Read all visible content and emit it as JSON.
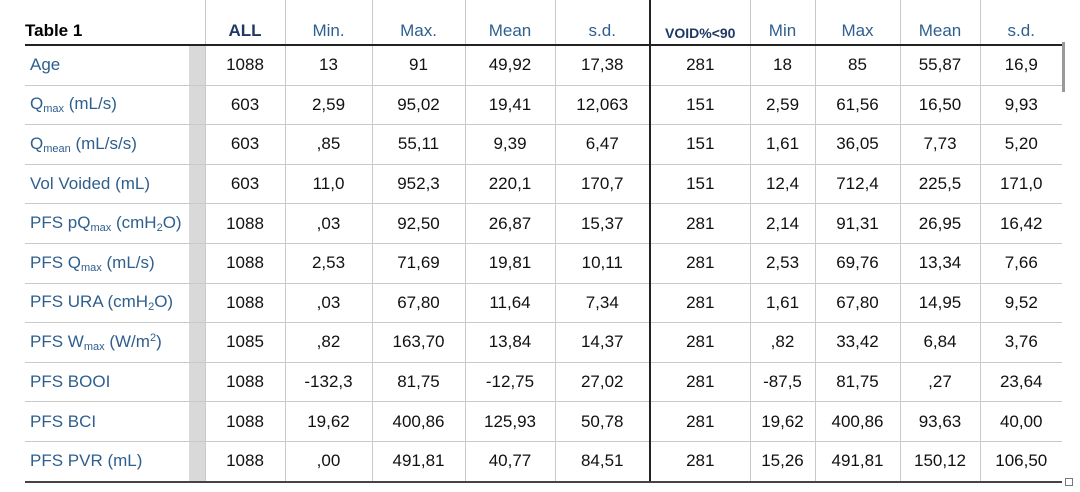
{
  "table": {
    "header": [
      "Table 1",
      "ALL",
      "Min.",
      "Max.",
      "Mean",
      "s.d.",
      "VOID%<90",
      "Min",
      "Max",
      "Mean",
      "s.d."
    ],
    "rows": [
      {
        "label": [
          {
            "text": "Age"
          }
        ],
        "cells": [
          "1088",
          "13",
          "91",
          "49,92",
          "17,38",
          "281",
          "18",
          "85",
          "55,87",
          "16,9"
        ]
      },
      {
        "label": [
          {
            "text": "Q"
          },
          {
            "text": "max",
            "style": "sub"
          },
          {
            "text": " (mL/s)"
          }
        ],
        "cells": [
          "603",
          "2,59",
          "95,02",
          "19,41",
          "12,063",
          "151",
          "2,59",
          "61,56",
          "16,50",
          "9,93"
        ]
      },
      {
        "label": [
          {
            "text": "Q"
          },
          {
            "text": "mean",
            "style": "sub"
          },
          {
            "text": " (mL/s/s)"
          }
        ],
        "cells": [
          "603",
          ",85",
          "55,11",
          "9,39",
          "6,47",
          "151",
          "1,61",
          "36,05",
          "7,73",
          "5,20"
        ]
      },
      {
        "label": [
          {
            "text": "Vol Voided (mL)"
          }
        ],
        "cells": [
          "603",
          "11,0",
          "952,3",
          "220,1",
          "170,7",
          "151",
          "12,4",
          "712,4",
          "225,5",
          "171,0"
        ]
      },
      {
        "label": [
          {
            "text": "PFS pQ"
          },
          {
            "text": "max",
            "style": "sub"
          },
          {
            "text": " (cmH"
          },
          {
            "text": "2",
            "style": "sub"
          },
          {
            "text": "O)"
          }
        ],
        "cells": [
          "1088",
          ",03",
          "92,50",
          "26,87",
          "15,37",
          "281",
          "2,14",
          "91,31",
          "26,95",
          "16,42"
        ]
      },
      {
        "label": [
          {
            "text": "PFS Q"
          },
          {
            "text": "max",
            "style": "sub"
          },
          {
            "text": " (mL/s)"
          }
        ],
        "cells": [
          "1088",
          "2,53",
          "71,69",
          "19,81",
          "10,11",
          "281",
          "2,53",
          "69,76",
          "13,34",
          "7,66"
        ]
      },
      {
        "label": [
          {
            "text": "PFS URA (cmH"
          },
          {
            "text": "2",
            "style": "sub"
          },
          {
            "text": "O)"
          }
        ],
        "cells": [
          "1088",
          ",03",
          "67,80",
          "11,64",
          "7,34",
          "281",
          "1,61",
          "67,80",
          "14,95",
          "9,52"
        ]
      },
      {
        "label": [
          {
            "text": "PFS W"
          },
          {
            "text": "max",
            "style": "sub"
          },
          {
            "text": " (W/m"
          },
          {
            "text": "2",
            "style": "sup"
          },
          {
            "text": ")"
          }
        ],
        "cells": [
          "1085",
          ",82",
          "163,70",
          "13,84",
          "14,37",
          "281",
          ",82",
          "33,42",
          "6,84",
          "3,76"
        ]
      },
      {
        "label": [
          {
            "text": "PFS BOOI"
          }
        ],
        "cells": [
          "1088",
          "-132,3",
          "81,75",
          "-12,75",
          "27,02",
          "281",
          "-87,5",
          "81,75",
          ",27",
          "23,64"
        ]
      },
      {
        "label": [
          {
            "text": "PFS BCI"
          }
        ],
        "cells": [
          "1088",
          "19,62",
          "400,86",
          "125,93",
          "50,78",
          "281",
          "19,62",
          "400,86",
          "93,63",
          "40,00"
        ]
      },
      {
        "label": [
          {
            "text": "PFS PVR (mL)"
          }
        ],
        "cells": [
          "1088",
          ",00",
          "491,81",
          "40,77",
          "84,51",
          "281",
          "15,26",
          "491,81",
          "150,12",
          "106,50"
        ]
      }
    ]
  }
}
